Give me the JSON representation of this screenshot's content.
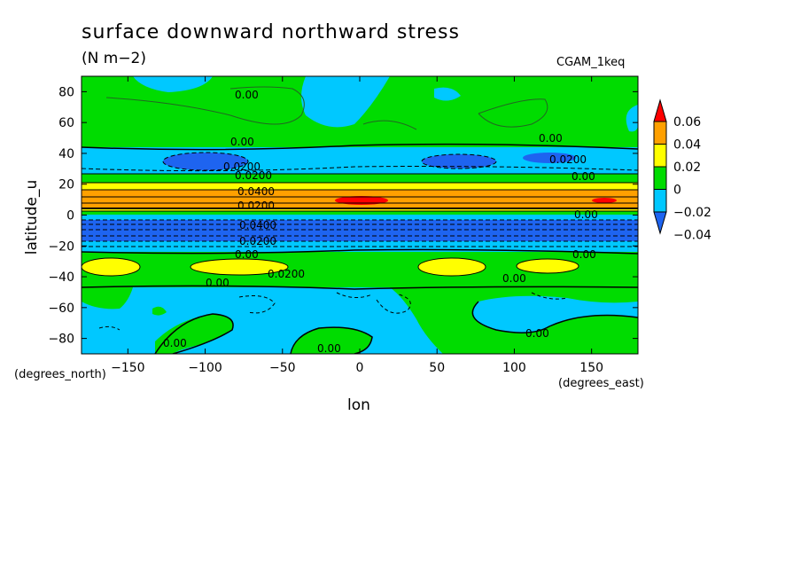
{
  "chart_data": {
    "type": "heatmap",
    "title": "surface downward northward stress",
    "units": "(N m−2)",
    "model": "CGAM_1keq",
    "xlabel": "lon",
    "ylabel": "latitude_u",
    "xunits": "(degrees_east)",
    "yunits": "(degrees_north)",
    "xlim": [
      -180,
      180
    ],
    "ylim": [
      -90,
      90
    ],
    "xticks": [
      -150,
      -100,
      -50,
      0,
      50,
      100,
      150
    ],
    "yticks": [
      80,
      60,
      40,
      20,
      0,
      -20,
      -40,
      -60,
      -80
    ],
    "xtick_labels": [
      "−150",
      "−100",
      "−50",
      "0",
      "50",
      "100",
      "150"
    ],
    "ytick_labels": [
      "80",
      "60",
      "40",
      "20",
      "0",
      "−20",
      "−40",
      "−60",
      "−80"
    ],
    "colorbar": {
      "levels": [
        -0.04,
        -0.02,
        0,
        0.02,
        0.04,
        0.06
      ],
      "labels": [
        "−0.04",
        "−0.02",
        "0",
        "0.02",
        "0.04",
        "0.06"
      ],
      "colors": [
        "#1e64f0",
        "#00c8ff",
        "#00dc00",
        "#ffff00",
        "#ffa000",
        "#ff0000"
      ]
    },
    "zonal_bands_description_lat": [
      {
        "lat_from": 90,
        "lat_to": 40,
        "value_range": "0 to 0.02"
      },
      {
        "lat_from": 40,
        "lat_to": 25,
        "value_range": "-0.02 to 0"
      },
      {
        "lat_from": 25,
        "lat_to": 5,
        "value_range": "0.02 to 0.06"
      },
      {
        "lat_from": 5,
        "lat_to": -15,
        "value_range": "-0.06 to -0.02"
      },
      {
        "lat_from": -15,
        "lat_to": -30,
        "value_range": "-0.02 to 0.02"
      },
      {
        "lat_from": -30,
        "lat_to": -40,
        "value_range": "0.02 to 0.04"
      },
      {
        "lat_from": -40,
        "lat_to": -90,
        "value_range": "-0.02 to 0.02"
      }
    ],
    "contour_labels": [
      "0.00",
      "0.00",
      "0.00",
      "0.00",
      "0.0200",
      "0.0200",
      "0.0400",
      "0.0200",
      "0.0400",
      "0.0200",
      "0.0200",
      "0.00",
      "0.00",
      "0.00",
      "0.0200",
      "0.00",
      "0.00",
      "0.00",
      "0.00",
      "0.00"
    ]
  }
}
